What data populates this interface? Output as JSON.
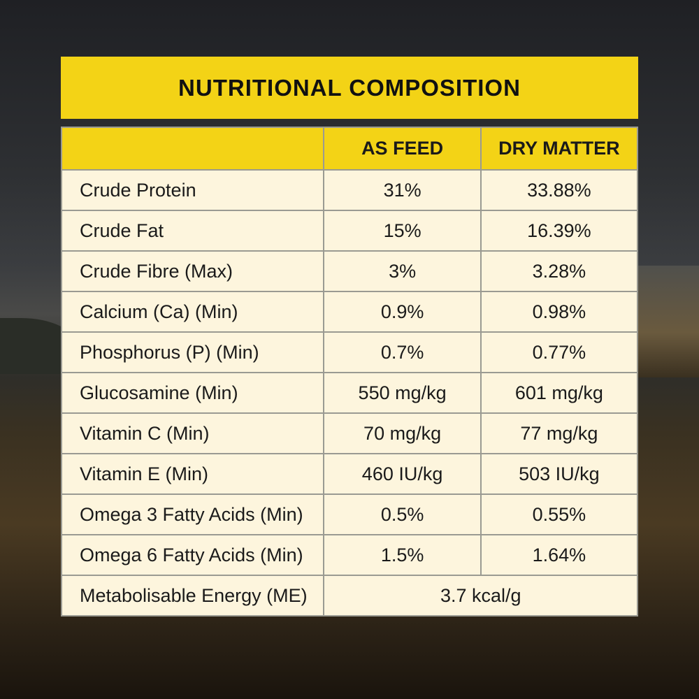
{
  "title": "NUTRITIONAL COMPOSITION",
  "columns": [
    "",
    "AS FEED",
    "DRY MATTER"
  ],
  "rows": [
    {
      "name": "Crude Protein",
      "as_feed": "31%",
      "dry_matter": "33.88%"
    },
    {
      "name": "Crude Fat",
      "as_feed": "15%",
      "dry_matter": "16.39%"
    },
    {
      "name": "Crude Fibre (Max)",
      "as_feed": "3%",
      "dry_matter": "3.28%"
    },
    {
      "name": "Calcium (Ca) (Min)",
      "as_feed": "0.9%",
      "dry_matter": "0.98%"
    },
    {
      "name": "Phosphorus (P) (Min)",
      "as_feed": "0.7%",
      "dry_matter": "0.77%"
    },
    {
      "name": "Glucosamine (Min)",
      "as_feed": "550 mg/kg",
      "dry_matter": "601 mg/kg"
    },
    {
      "name": "Vitamin C (Min)",
      "as_feed": "70 mg/kg",
      "dry_matter": "77 mg/kg"
    },
    {
      "name": "Vitamin E (Min)",
      "as_feed": "460 IU/kg",
      "dry_matter": "503 IU/kg"
    },
    {
      "name": "Omega 3 Fatty Acids (Min)",
      "as_feed": "0.5%",
      "dry_matter": "0.55%"
    },
    {
      "name": "Omega 6 Fatty Acids (Min)",
      "as_feed": "1.5%",
      "dry_matter": "1.64%"
    }
  ],
  "energy": {
    "name": "Metabolisable Energy (ME)",
    "value": "3.7 kcal/g"
  },
  "colors": {
    "header": "#f3d316",
    "cell": "#fdf5dd",
    "border": "#9a9a92"
  }
}
